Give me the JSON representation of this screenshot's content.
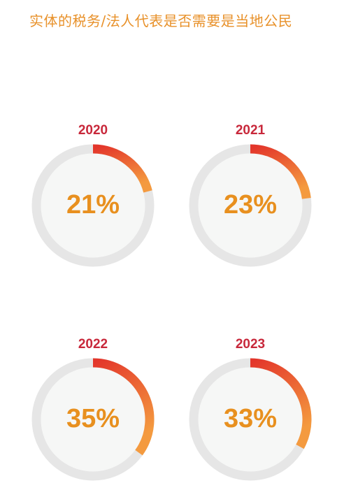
{
  "title": "实体的税务/法人代表是否需要是当地公民",
  "colors": {
    "title": "#e8912a",
    "year": "#c8283b",
    "percent": "#e8901f",
    "track": "#e6e6e6",
    "inner": "#f6f7f6",
    "arc_start": "#e3362b",
    "arc_end": "#f49a3f"
  },
  "chart_data": {
    "type": "donut",
    "unit": "%",
    "items": [
      {
        "label": "2020",
        "value": 21,
        "display": "21%"
      },
      {
        "label": "2021",
        "value": 23,
        "display": "23%"
      },
      {
        "label": "2022",
        "value": 35,
        "display": "35%"
      },
      {
        "label": "2023",
        "value": 33,
        "display": "33%"
      }
    ]
  }
}
